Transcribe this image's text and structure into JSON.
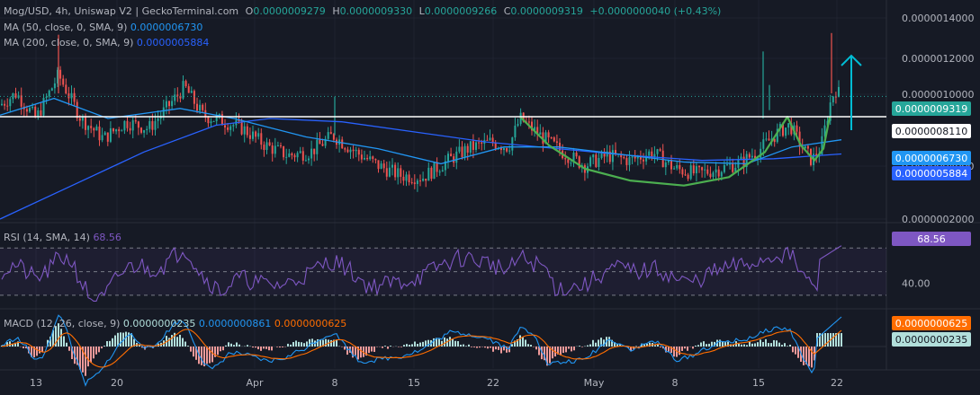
{
  "header": {
    "symbol": "Mog/USD, 4h, Uniswap V2 | GeckoTerminal.com",
    "o_label": "O",
    "o_value": "0.0000009279",
    "h_label": "H",
    "h_value": "0.0000009330",
    "l_label": "L",
    "l_value": "0.0000009266",
    "c_label": "C",
    "c_value": "0.0000009319",
    "change": "+0.0000000040 (+0.43%)"
  },
  "ma50": {
    "label": "MA (50, close, 0, SMA, 9)",
    "value": "0.0000006730",
    "color": "#2196f3"
  },
  "ma200": {
    "label": "MA (200, close, 0, SMA, 9)",
    "value": "0.0000005884",
    "color": "#2962ff"
  },
  "rsi": {
    "label": "RSI (14, SMA, 14)",
    "value": "68.56",
    "level_label": "40.00",
    "color": "#7e57c2"
  },
  "macd": {
    "label": "MACD (12, 26, close, 9)",
    "hist": "0.0000000235",
    "macd": "0.0000000861",
    "signal": "0.0000000625",
    "colors": {
      "macd": "#2196f3",
      "signal": "#ff6d00",
      "hist_up": "#b2dfdb",
      "hist_down": "#ef9a9a"
    }
  },
  "right_labels": {
    "price": "0.0000009319",
    "support": "0.0000008110",
    "ma50": "0.0000006730",
    "ma200": "0.0000005884",
    "rsi": "68.56",
    "macd_signal": "0.0000000625",
    "macd_hist": "0.0000000235"
  },
  "chart_data": {
    "type": "candlestick",
    "y_ticks": [
      "0.0000014000",
      "0.0000012000",
      "0.0000010000",
      "0.0000004000",
      "0.0000002000"
    ],
    "ylim": [
      2e-07,
      1.4e-06
    ],
    "x_ticks": [
      "13",
      "20",
      "Apr",
      "8",
      "15",
      "22",
      "May",
      "8",
      "15",
      "22"
    ],
    "support_level": 8.11e-07,
    "current_price": 9.319e-07,
    "colors": {
      "up": "#26a69a",
      "down": "#ef5350",
      "cup": "#4caf50",
      "arrow": "#00bcd4",
      "support": "#ffffff"
    },
    "price_path": [
      [
        0,
        8.8e-07
      ],
      [
        18,
        9.5e-07
      ],
      [
        40,
        8e-07
      ],
      [
        65,
        1.06e-06
      ],
      [
        90,
        8e-07
      ],
      [
        115,
        6.8e-07
      ],
      [
        140,
        7.8e-07
      ],
      [
        165,
        7.4e-07
      ],
      [
        185,
        8.6e-07
      ],
      [
        205,
        9.9e-07
      ],
      [
        225,
        8.2e-07
      ],
      [
        250,
        7.8e-07
      ],
      [
        270,
        7.4e-07
      ],
      [
        295,
        6.4e-07
      ],
      [
        320,
        5.8e-07
      ],
      [
        345,
        6e-07
      ],
      [
        370,
        7e-07
      ],
      [
        395,
        6e-07
      ],
      [
        420,
        5.2e-07
      ],
      [
        445,
        4.6e-07
      ],
      [
        470,
        4.5e-07
      ],
      [
        495,
        5.4e-07
      ],
      [
        520,
        6.2e-07
      ],
      [
        545,
        6.6e-07
      ],
      [
        565,
        6.3e-07
      ],
      [
        578,
        8e-07
      ],
      [
        600,
        7e-07
      ],
      [
        625,
        6e-07
      ],
      [
        650,
        5.2e-07
      ],
      [
        675,
        5.8e-07
      ],
      [
        700,
        5.5e-07
      ],
      [
        725,
        6e-07
      ],
      [
        750,
        5e-07
      ],
      [
        775,
        4.7e-07
      ],
      [
        800,
        5e-07
      ],
      [
        825,
        5.4e-07
      ],
      [
        845,
        6.2e-07
      ],
      [
        865,
        7.2e-07
      ],
      [
        878,
        7.6e-07
      ],
      [
        890,
        6.4e-07
      ],
      [
        902,
        5.5e-07
      ],
      [
        912,
        6.2e-07
      ],
      [
        922,
        8.8e-07
      ],
      [
        928,
        9.8e-07
      ],
      [
        935,
        9.3e-07
      ]
    ],
    "ma50_path": [
      [
        0,
        8.2e-07
      ],
      [
        60,
        9.2e-07
      ],
      [
        120,
        8e-07
      ],
      [
        200,
        8.6e-07
      ],
      [
        260,
        8e-07
      ],
      [
        340,
        6.9e-07
      ],
      [
        420,
        6.2e-07
      ],
      [
        490,
        5.3e-07
      ],
      [
        560,
        6.3e-07
      ],
      [
        620,
        6.3e-07
      ],
      [
        700,
        5.8e-07
      ],
      [
        760,
        5.4e-07
      ],
      [
        830,
        5.3e-07
      ],
      [
        880,
        6.3e-07
      ],
      [
        935,
        6.73e-07
      ]
    ],
    "ma200_path": [
      [
        0,
        2e-07
      ],
      [
        80,
        4e-07
      ],
      [
        160,
        6e-07
      ],
      [
        240,
        7.6e-07
      ],
      [
        300,
        8e-07
      ],
      [
        380,
        7.8e-07
      ],
      [
        460,
        7.2e-07
      ],
      [
        540,
        6.6e-07
      ],
      [
        620,
        6.2e-07
      ],
      [
        700,
        5.8e-07
      ],
      [
        780,
        5.5e-07
      ],
      [
        860,
        5.6e-07
      ],
      [
        935,
        5.884e-07
      ]
    ],
    "cup_path": [
      [
        578,
        8.1e-07
      ],
      [
        610,
        6.4e-07
      ],
      [
        650,
        5e-07
      ],
      [
        700,
        4.3e-07
      ],
      [
        760,
        4e-07
      ],
      [
        810,
        4.5e-07
      ],
      [
        850,
        6e-07
      ],
      [
        875,
        8.1e-07
      ],
      [
        890,
        6.4e-07
      ],
      [
        905,
        5.5e-07
      ],
      [
        915,
        6.2e-07
      ],
      [
        922,
        8.1e-07
      ]
    ]
  }
}
